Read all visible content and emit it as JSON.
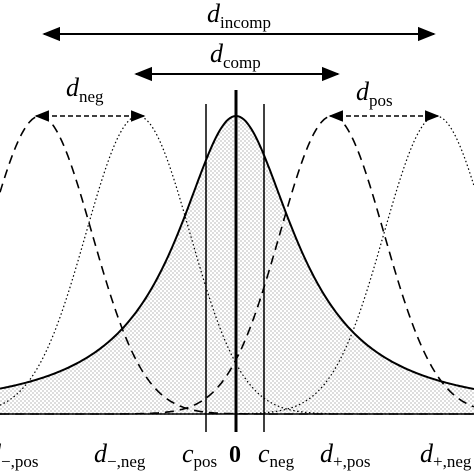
{
  "labels": {
    "d_incomp": {
      "main": "d",
      "sub": "incomp"
    },
    "d_comp": {
      "main": "d",
      "sub": "comp"
    },
    "d_neg": {
      "main": "d",
      "sub": "neg"
    },
    "d_pos": {
      "main": "d",
      "sub": "pos"
    }
  },
  "axis_labels": {
    "d_minus_pos": {
      "main": "d",
      "sub": "−,pos"
    },
    "d_minus_neg": {
      "main": "d",
      "sub": "−,neg"
    },
    "c_pos": {
      "main": "c",
      "sub": "pos"
    },
    "zero": "0",
    "c_neg": {
      "main": "c",
      "sub": "neg"
    },
    "d_plus_pos": {
      "main": "d",
      "sub": "+,pos"
    },
    "d_plus_neg": {
      "main": "d",
      "sub": "+,neg"
    }
  },
  "colors": {
    "stroke": "#000000",
    "fill_dots": "#999999"
  }
}
